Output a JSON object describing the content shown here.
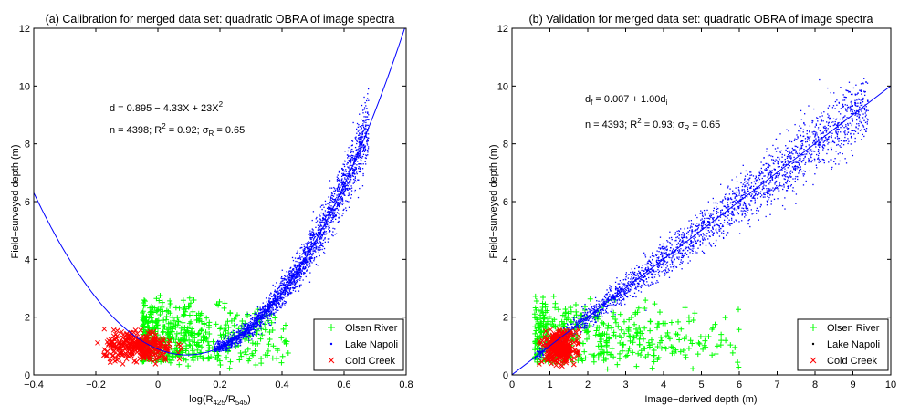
{
  "colors": {
    "olsen": "#00ff00",
    "napoli": "#0000ff",
    "cold": "#ff0000",
    "fit_line": "#0000ff"
  },
  "chart_data": [
    {
      "type": "scatter",
      "title": "(a) Calibration for merged data set: quadratic OBRA of image spectra",
      "xlabel_parts": {
        "base": "log(R",
        "sub1": "425",
        "mid": "/R",
        "sub2": "545",
        "end": ")"
      },
      "ylabel": "Field−surveyed depth (m)",
      "xlim": [
        -0.4,
        0.8
      ],
      "ylim": [
        0,
        12
      ],
      "xticks": [
        "−0.4",
        "−0.2",
        "0",
        "0.2",
        "0.4",
        "0.6",
        "0.8"
      ],
      "yticks": [
        "0",
        "2",
        "4",
        "6",
        "8",
        "10",
        "12"
      ],
      "annotations": {
        "equation": {
          "lead": "d = 0.895 − 4.33X + 23X",
          "sup": "2"
        },
        "stats": {
          "lead": "n = 4398; R",
          "sup": "2",
          "mid": " = 0.92; σ",
          "sub": "R",
          "end": " = 0.65"
        }
      },
      "fit": {
        "type": "quadratic",
        "a": 0.895,
        "b": -4.33,
        "c": 23
      },
      "legend": {
        "position": "bottom-right",
        "entries": [
          "Olsen River",
          "Lake Napoli",
          "Cold Creek"
        ]
      },
      "series": [
        {
          "name": "Olsen River",
          "marker": "+",
          "color": "#00ff00",
          "n": 520,
          "x_range": [
            -0.05,
            0.42
          ],
          "y_range": [
            0.2,
            2.8
          ]
        },
        {
          "name": "Lake Napoli",
          "marker": ".",
          "color": "#0000ff",
          "n": 2600,
          "x_range": [
            0.18,
            0.68
          ],
          "y_range": [
            0.8,
            10.4
          ]
        },
        {
          "name": "Cold Creek",
          "marker": "x",
          "color": "#ff0000",
          "n": 320,
          "x_range": [
            -0.2,
            0.08
          ],
          "y_range": [
            0.3,
            1.6
          ]
        }
      ]
    },
    {
      "type": "scatter",
      "title": "(b) Validation for merged data set: quadratic OBRA of image spectra",
      "xlabel": "Image−derived depth (m)",
      "ylabel": "Field−surveyed depth (m)",
      "xlim": [
        0,
        10
      ],
      "ylim": [
        0,
        12
      ],
      "xticks": [
        "0",
        "1",
        "2",
        "3",
        "4",
        "5",
        "6",
        "7",
        "8",
        "9",
        "10"
      ],
      "yticks": [
        "0",
        "2",
        "4",
        "6",
        "8",
        "10",
        "12"
      ],
      "annotations": {
        "equation": {
          "p1": "d",
          "s1": "f",
          "p2": " = 0.007 + 1.00d",
          "s2": "i"
        },
        "stats": {
          "lead": "n = 4393; R",
          "sup": "2",
          "mid": " = 0.93; σ",
          "sub": "R",
          "end": " = 0.65"
        }
      },
      "fit": {
        "type": "linear",
        "intercept": 0.007,
        "slope": 1.0
      },
      "legend": {
        "position": "bottom-right",
        "entries": [
          "Olsen River",
          "Lake Napoli",
          "Cold Creek"
        ]
      },
      "series": [
        {
          "name": "Olsen River",
          "marker": "+",
          "color": "#00ff00",
          "n": 500,
          "x_range": [
            0.6,
            6.0
          ],
          "y_range": [
            0.2,
            2.8
          ]
        },
        {
          "name": "Lake Napoli",
          "marker": ".",
          "color": "#0000ff",
          "n": 2600,
          "x_range": [
            0.6,
            9.4
          ],
          "y_range": [
            0.5,
            10.3
          ]
        },
        {
          "name": "Cold Creek",
          "marker": "x",
          "color": "#ff0000",
          "n": 320,
          "x_range": [
            0.7,
            1.8
          ],
          "y_range": [
            0.3,
            1.6
          ]
        }
      ]
    }
  ]
}
